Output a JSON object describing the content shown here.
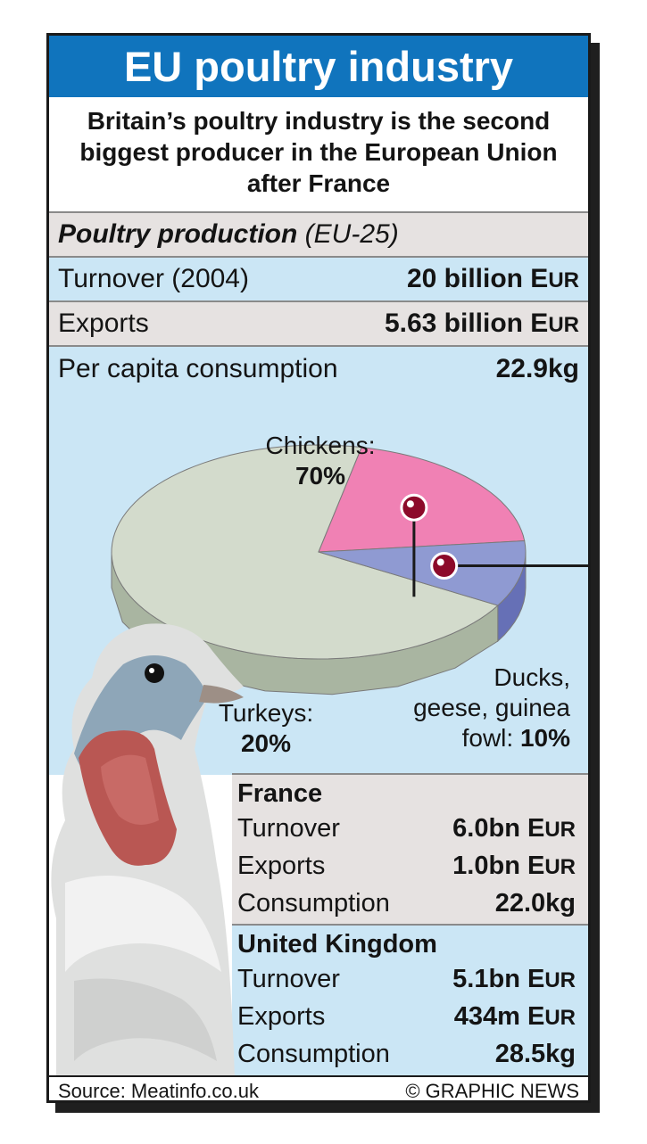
{
  "title": "EU poultry industry",
  "subtitle": "Britain’s poultry industry is the second biggest producer in the European Union after France",
  "section": {
    "heading": "Poultry production",
    "region": "(EU-25)"
  },
  "stats": {
    "turnover_label": "Turnover (2004)",
    "turnover_value": "20 billion E",
    "turnover_unit": "UR",
    "exports_label": "Exports",
    "exports_value": "5.63 billion E",
    "exports_unit": "UR",
    "per_capita_label": "Per capita consumption",
    "per_capita_value": "22.9kg"
  },
  "chart_data": {
    "type": "pie",
    "categories": [
      "Chickens",
      "Turkeys",
      "Ducks, geese, guinea fowl"
    ],
    "values": [
      70,
      20,
      10
    ],
    "labels": [
      {
        "name": "Chickens:",
        "pct": "70%"
      },
      {
        "name": "Turkeys:",
        "pct": "20%"
      },
      {
        "name_line1": "Ducks,",
        "name_line2": "geese, guinea",
        "name_line3": "fowl:",
        "pct": "10%"
      }
    ],
    "colors": {
      "chickens": "#d3dbcc",
      "chickens_side": "#a9b5a1",
      "turkeys": "#f081b4",
      "turkeys_side": "#d55a96",
      "ducks": "#8f9ad2",
      "ducks_side": "#6670b6",
      "marker": "#8c0a2a"
    }
  },
  "countries": [
    {
      "name": "France",
      "rows": [
        {
          "label": "Turnover",
          "value": "6.0bn E",
          "unit": "UR"
        },
        {
          "label": "Exports",
          "value": "1.0bn E",
          "unit": "UR"
        },
        {
          "label": "Consumption",
          "value": "22.0kg",
          "unit": ""
        }
      ]
    },
    {
      "name": "United Kingdom",
      "rows": [
        {
          "label": "Turnover",
          "value": "5.1bn E",
          "unit": "UR"
        },
        {
          "label": "Exports",
          "value": "434m E",
          "unit": "UR"
        },
        {
          "label": "Consumption",
          "value": "28.5kg",
          "unit": ""
        }
      ]
    }
  ],
  "footer": {
    "source": "Source: Meatinfo.co.uk",
    "credit": "© GRAPHIC NEWS"
  }
}
